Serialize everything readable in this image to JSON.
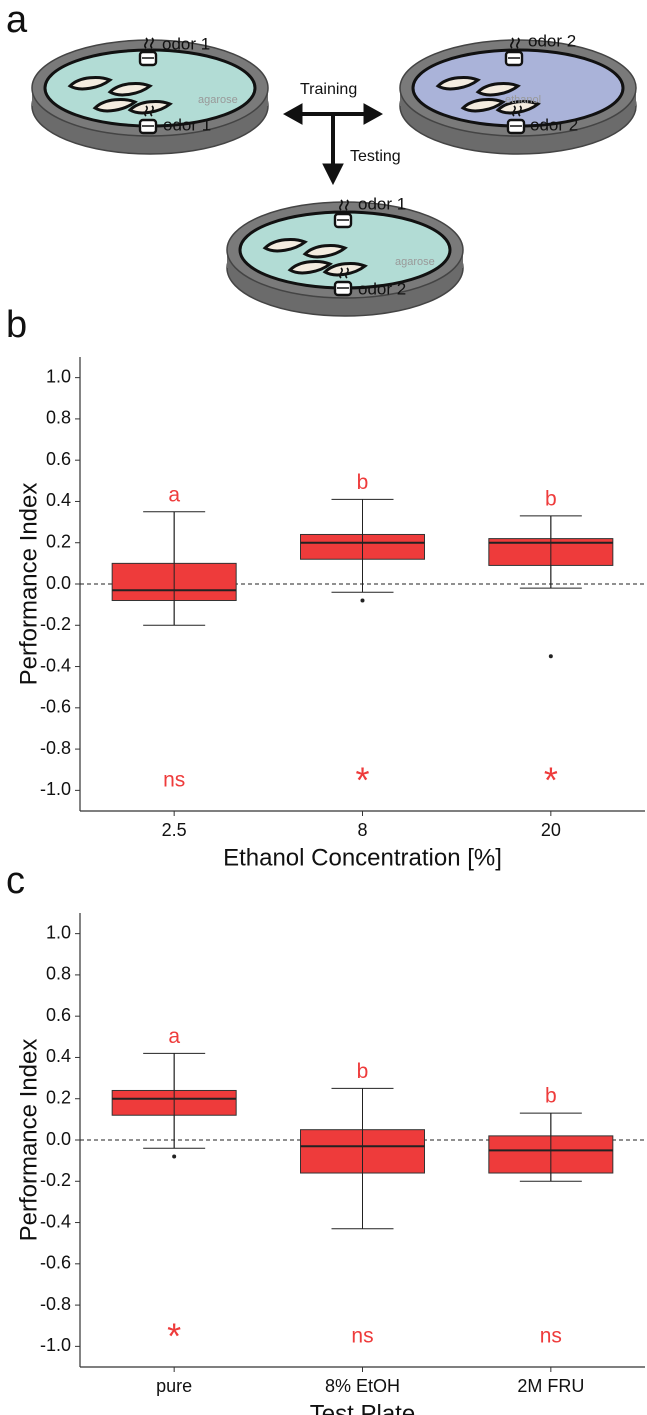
{
  "diagram": {
    "panel_label": "a",
    "left_top_odor": "odor 1",
    "left_substrate": "agarose",
    "left_bottom_odor": "odor 1",
    "training": "Training",
    "testing": "Testing",
    "right_top_odor": "odor 2",
    "right_substrate": "ethanol",
    "right_bottom_odor": "odor 2",
    "test_top_odor": "odor 1",
    "test_substrate": "agarose",
    "test_bottom_odor": "odor 2"
  },
  "chart_data": [
    {
      "type": "box",
      "panel_label": "b",
      "y_label": "Performance Index",
      "x_label": "Ethanol Concentration [%]",
      "categories": [
        "2.5",
        "8",
        "20"
      ],
      "color": "#ee3b3b",
      "boxes": [
        {
          "low": -0.2,
          "q1": -0.08,
          "median": -0.03,
          "q3": 0.1,
          "high": 0.35,
          "outliers": []
        },
        {
          "low": -0.04,
          "q1": 0.12,
          "median": 0.2,
          "q3": 0.24,
          "high": 0.41,
          "outliers": [
            -0.08
          ]
        },
        {
          "low": -0.02,
          "q1": 0.09,
          "median": 0.2,
          "q3": 0.22,
          "high": 0.33,
          "outliers": [
            -0.35
          ]
        }
      ],
      "group_labels": [
        "a",
        "b",
        "b"
      ],
      "significance": [
        "ns",
        "*",
        "*"
      ],
      "reference_line": 0,
      "ylim": [
        -1.1,
        1.1
      ],
      "yticks": [
        {
          "value": 1,
          "label": "1.0"
        },
        0.8,
        0.6,
        0.4,
        0.2,
        {
          "value": 0,
          "label": "0.0"
        },
        -0.2,
        -0.4,
        -0.6,
        -0.8,
        {
          "value": -1,
          "label": "-1.0"
        }
      ]
    },
    {
      "type": "box",
      "panel_label": "c",
      "y_label": "Performance Index",
      "x_label": "Test Plate",
      "categories": [
        "pure",
        "8% EtOH",
        "2M FRU"
      ],
      "color": "#ee3b3b",
      "boxes": [
        {
          "low": -0.04,
          "q1": 0.12,
          "median": 0.2,
          "q3": 0.24,
          "high": 0.42,
          "outliers": [
            -0.08
          ]
        },
        {
          "low": -0.43,
          "q1": -0.16,
          "median": -0.03,
          "q3": 0.05,
          "high": 0.25,
          "outliers": []
        },
        {
          "low": -0.2,
          "q1": -0.16,
          "median": -0.05,
          "q3": 0.02,
          "high": 0.13,
          "outliers": []
        }
      ],
      "group_labels": [
        "a",
        "b",
        "b"
      ],
      "significance": [
        "*",
        "ns",
        "ns"
      ],
      "reference_line": 0,
      "ylim": [
        -1.1,
        1.1
      ],
      "yticks": [
        {
          "value": 1,
          "label": "1.0"
        },
        0.8,
        0.6,
        0.4,
        0.2,
        {
          "value": 0,
          "label": "0.0"
        },
        -0.2,
        -0.4,
        -0.6,
        -0.8,
        {
          "value": -1,
          "label": "-1.0"
        }
      ]
    }
  ]
}
